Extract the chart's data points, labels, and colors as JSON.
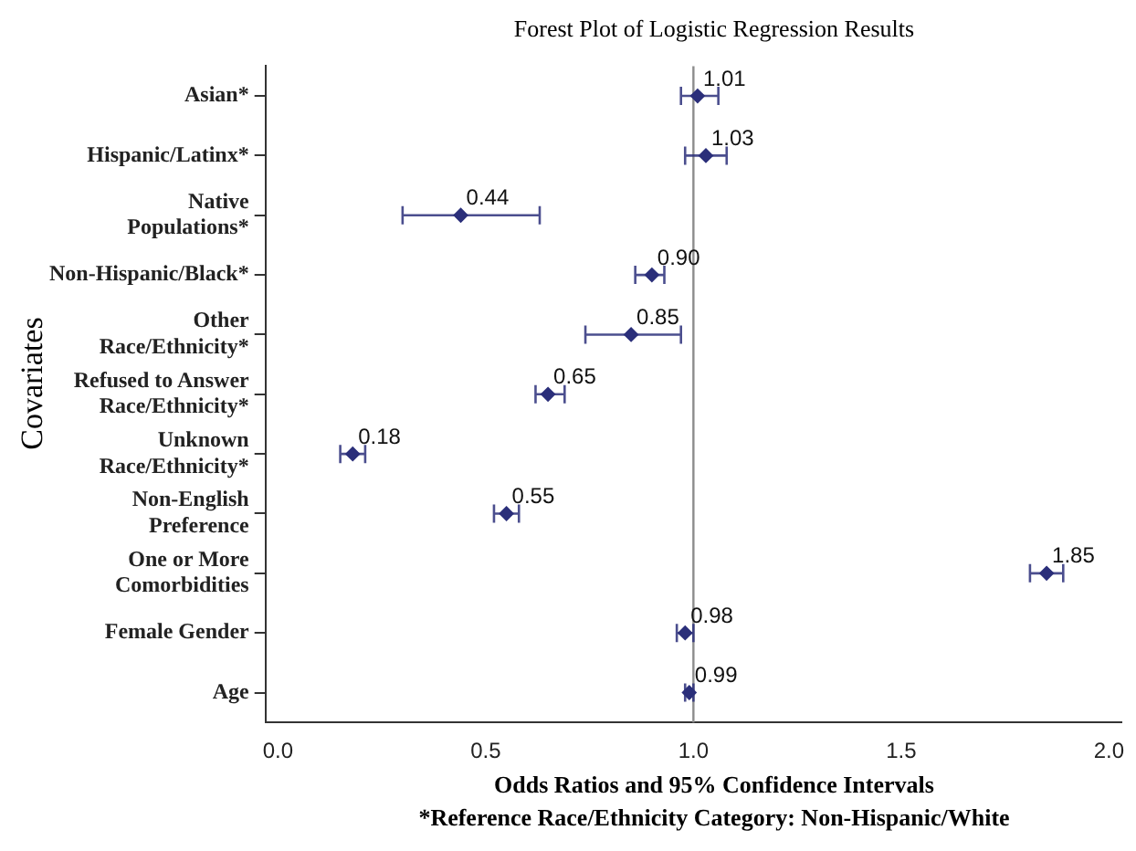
{
  "chart_data": {
    "type": "scatter",
    "orientation": "horizontal",
    "title": "Forest Plot of Logistic Regression Results",
    "xlabel": "Odds Ratios and 95% Confidence Intervals",
    "ylabel": "Covariates",
    "annotations": [
      "*Reference Race/Ethnicity Category: Non-Hispanic/White"
    ],
    "categories": [
      "Asian*",
      "Hispanic/Latinx*",
      "Native Populations*",
      "Non-Hispanic/Black*",
      "Other Race/Ethnicity*",
      "Refused to Answer Race/Ethnicity*",
      "Unknown Race/Ethnicity*",
      "Non-English Preference",
      "One or More Comorbidities",
      "Female Gender",
      "Age"
    ],
    "values": [
      1.01,
      1.03,
      0.44,
      0.9,
      0.85,
      0.65,
      0.18,
      0.55,
      1.85,
      0.98,
      0.99
    ],
    "errors": [
      [
        0.97,
        1.06
      ],
      [
        0.98,
        1.08
      ],
      [
        0.3,
        0.63
      ],
      [
        0.86,
        0.93
      ],
      [
        0.74,
        0.97
      ],
      [
        0.62,
        0.69
      ],
      [
        0.15,
        0.21
      ],
      [
        0.52,
        0.58
      ],
      [
        1.81,
        1.89
      ],
      [
        0.96,
        1.0
      ],
      [
        0.98,
        1.0
      ]
    ],
    "value_labels": [
      "1.01",
      "1.03",
      "0.44",
      "0.90",
      "0.85",
      "0.65",
      "0.18",
      "0.55",
      "1.85",
      "0.98",
      "0.99"
    ],
    "color": "#2b2f7a",
    "marker": "diamond",
    "xlim": [
      -0.03,
      2.03
    ],
    "xticks": [
      {
        "value": 0,
        "label": "0.0"
      },
      {
        "value": 0.5,
        "label": "0.5"
      },
      {
        "value": 1,
        "label": "1.0"
      },
      {
        "value": 1.5,
        "label": "1.5"
      },
      {
        "value": 2,
        "label": "2.0"
      }
    ],
    "ref_lines": [
      {
        "axis": "x",
        "value": 1,
        "color": "#8c8c8c"
      }
    ],
    "grid": false,
    "legend": false
  }
}
